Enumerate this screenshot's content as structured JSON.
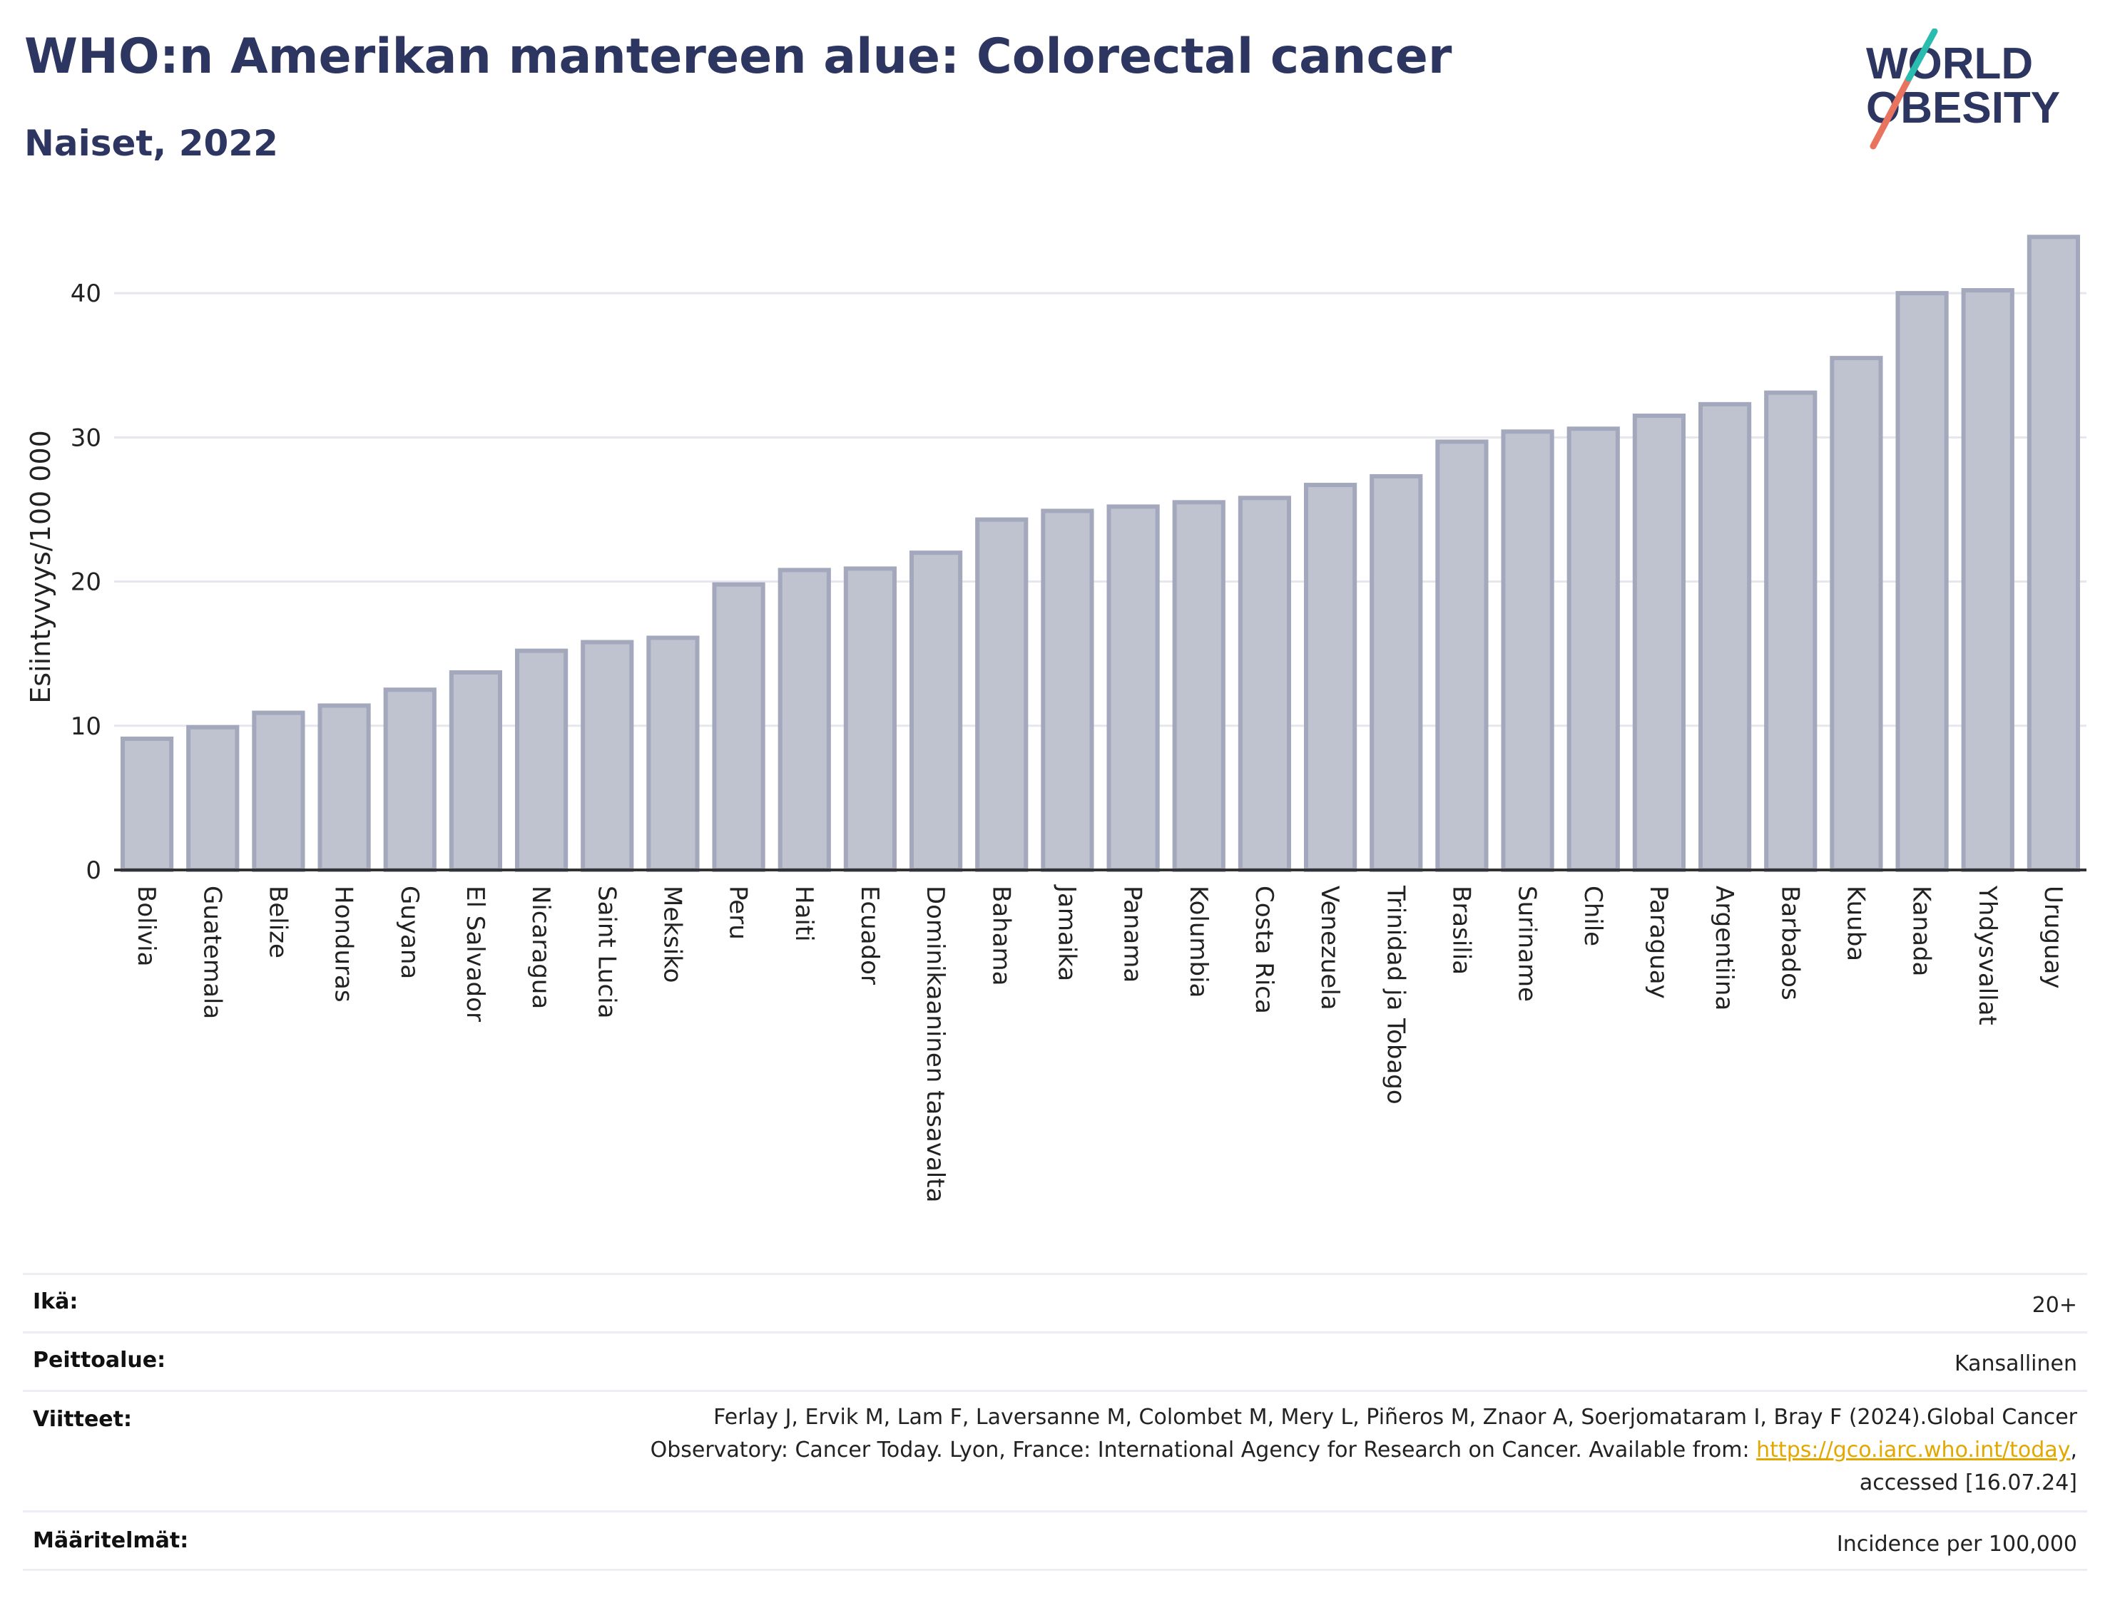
{
  "title": "WHO:n Amerikan mantereen alue: Colorectal cancer",
  "subtitle": "Naiset, 2022",
  "logo": {
    "line1": "WORLD",
    "line2": "OBESITY"
  },
  "colors": {
    "bar_fill": "#bfc2cf",
    "bar_stroke": "#a3a8bc",
    "title": "#2d3561",
    "grid": "#e6e7ee"
  },
  "chart_data": {
    "type": "bar",
    "ylabel": "Esiintyvyys/100 000",
    "ylim": [
      0,
      45
    ],
    "yticks": [
      0,
      10,
      20,
      30,
      40
    ],
    "grid": true,
    "categories": [
      "Bolivia",
      "Guatemala",
      "Belize",
      "Honduras",
      "Guyana",
      "El Salvador",
      "Nicaragua",
      "Saint Lucia",
      "Meksiko",
      "Peru",
      "Haiti",
      "Ecuador",
      "Dominikaaninen tasavalta",
      "Bahama",
      "Jamaika",
      "Panama",
      "Kolumbia",
      "Costa Rica",
      "Venezuela",
      "Trinidad ja Tobago",
      "Brasilia",
      "Suriname",
      "Chile",
      "Paraguay",
      "Argentiina",
      "Barbados",
      "Kuuba",
      "Kanada",
      "Yhdysvallat",
      "Uruguay"
    ],
    "values": [
      9.1,
      9.9,
      10.9,
      11.4,
      12.5,
      13.7,
      15.2,
      15.8,
      16.1,
      19.8,
      20.8,
      20.9,
      22.0,
      24.3,
      24.9,
      25.2,
      25.5,
      25.8,
      26.7,
      27.3,
      29.7,
      30.4,
      30.6,
      31.5,
      32.3,
      33.1,
      35.5,
      40.0,
      40.2,
      43.9
    ]
  },
  "meta": {
    "age_label": "Ikä:",
    "age_value": "20+",
    "coverage_label": "Peittoalue:",
    "coverage_value": "Kansallinen",
    "refs_label": "Viitteet:",
    "refs_line1": "Ferlay J, Ervik M, Lam F, Laversanne M, Colombet M, Mery L, Piñeros M, Znaor A, Soerjomataram I, Bray F (2024).Global Cancer",
    "refs_line2_pre": "Observatory: Cancer Today. Lyon, France: International Agency for Research on Cancer. Available from: ",
    "refs_link": "https://gco.iarc.who.int/today",
    "refs_line2_post": ",",
    "refs_line3": "accessed [16.07.24]",
    "defs_label": "Määritelmät:",
    "defs_value": "Incidence per 100,000"
  }
}
